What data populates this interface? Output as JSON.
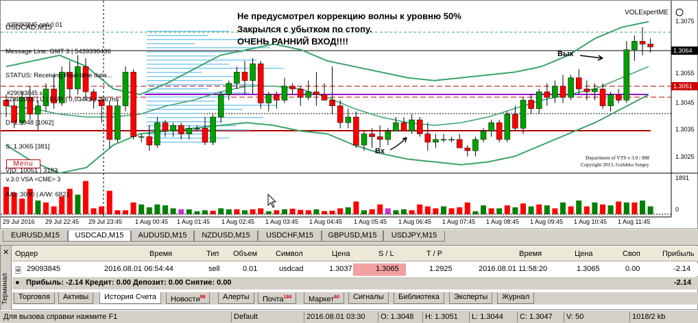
{
  "chart": {
    "title": "USDCAD,M15",
    "info_lines": [
      "Message Line: GMT 3 | 5439398436",
      "STATUS: Receiving Real-time data...",
      "22/8/2016 | U | EUR | 0,034k$ | 296 ms",
      "D: 1.3048 [1062]",
      "S: 1.3065 [381]",
      "V|D: 10051 | 3183",
      "A/D: 3090 | A/W: 6821"
    ],
    "ticket_label": "#29093845 sell 0.01",
    "ticket_label2": "#29093845 s",
    "annotation": "Не предусмотрел коррекцию волны к уровню 50%\nЗакрылся с убытком по стопу.\nОЧЕНЬ РАННИЙ ВХОД!!!!",
    "indicator_title": "VOLExpertME",
    "menu_label": "Menu",
    "copyright": "Department of VTS v 3.0 | 988\nCopyright 2015, Golubko Sergey",
    "exit_label": "Вых",
    "entry_label": "Вх",
    "vsa_label": "v.3.0 VSA <CME> 3",
    "price_ticks": [
      "1.3075",
      "1.3065",
      "1.3055",
      "1.3045",
      "1.3035",
      "1.3025"
    ],
    "price_tag_current": "1.3064",
    "price_tag_sl": "1.3051",
    "vol_ticks": [
      "1891",
      "0"
    ],
    "time_labels": [
      "29 Jul 2016",
      "29 Jul 22:45",
      "29 Jul 23:45",
      "1 Aug 00:45",
      "1 Aug 01:45",
      "1 Aug 02:45",
      "1 Aug 03:45",
      "1 Aug 04:45",
      "1 Aug 05:45",
      "1 Aug 06:45",
      "1 Aug 07:45",
      "1 Aug 08:45",
      "1 Aug 09:45",
      "1 Aug 10:45",
      "1 Aug 11:45"
    ],
    "colors": {
      "bull": "#00a000",
      "bear": "#ff0000",
      "band": "#3aa36a",
      "sl_line": "#b00000",
      "entry_line": "#9900cc"
    }
  },
  "symbol_tabs": [
    "EURUSD,M15",
    "USDCAD,M15",
    "AUDUSD,M15",
    "NZDUSD,M15",
    "USDCHF,M15",
    "GBPUSD,M15",
    "USDJPY,M15"
  ],
  "active_symbol": "USDCAD,M15",
  "terminal": {
    "side_label": "Терминал",
    "headers": [
      "Ордер",
      "Время",
      "Тип",
      "Объем",
      "Символ",
      "Цена",
      "S / L",
      "T / P",
      "Время",
      "Цена",
      "Своп",
      "Прибыль"
    ],
    "row": {
      "order": "29093845",
      "open_time": "2016.08.01 06:54:44",
      "type": "sell",
      "volume": "0.01",
      "symbol": "usdcad",
      "open_price": "1.3037",
      "sl": "1.3065",
      "tp": "1.2925",
      "close_time": "2016.08.01 11:58:20",
      "close_price": "1.3065",
      "swap": "0.00",
      "profit": "-2.14"
    },
    "summary": "Прибыль: -2.14  Кредит: 0.00  Депозит: 0.00  Снятие: 0.00",
    "summary_total": "-2.14",
    "tabs": [
      {
        "label": "Торговля",
        "badge": ""
      },
      {
        "label": "Активы",
        "badge": ""
      },
      {
        "label": "История Счета",
        "badge": ""
      },
      {
        "label": "Новости",
        "badge": "99"
      },
      {
        "label": "Алерты",
        "badge": ""
      },
      {
        "label": "Почта",
        "badge": "184"
      },
      {
        "label": "Маркет",
        "badge": "60"
      },
      {
        "label": "Сигналы",
        "badge": ""
      },
      {
        "label": "Библиотека",
        "badge": ""
      },
      {
        "label": "Эксперты",
        "badge": ""
      },
      {
        "label": "Журнал",
        "badge": ""
      }
    ],
    "active_tab": "История Счета"
  },
  "statusbar": {
    "help": "Для вызова справки нажмите F1",
    "profile": "Default",
    "time": "2016.08.01 03:30",
    "open": "O: 1.3048",
    "high": "H: 1.3051",
    "low": "L: 1.3044",
    "close": "C: 1.3047",
    "volume": "V: 50",
    "traffic": "1018/2 kb"
  },
  "candles": [
    [
      1.3046,
      1.3048,
      1.304,
      1.3044
    ],
    [
      1.3044,
      1.3047,
      1.3036,
      1.3038
    ],
    [
      1.3038,
      1.3049,
      1.3037,
      1.3047
    ],
    [
      1.3047,
      1.3051,
      1.3039,
      1.3041
    ],
    [
      1.3041,
      1.3046,
      1.3035,
      1.3044
    ],
    [
      1.3044,
      1.3052,
      1.3042,
      1.305
    ],
    [
      1.305,
      1.3055,
      1.3043,
      1.3045
    ],
    [
      1.3045,
      1.3058,
      1.3044,
      1.3056
    ],
    [
      1.3056,
      1.306,
      1.3047,
      1.305
    ],
    [
      1.305,
      1.3062,
      1.3048,
      1.3058
    ],
    [
      1.3058,
      1.3061,
      1.3046,
      1.3049
    ],
    [
      1.3049,
      1.305,
      1.3043,
      1.3046
    ],
    [
      1.3046,
      1.3047,
      1.3038,
      1.3044
    ],
    [
      1.3044,
      1.3046,
      1.3029,
      1.3032
    ],
    [
      1.3032,
      1.3046,
      1.3031,
      1.3044
    ],
    [
      1.3044,
      1.3058,
      1.3042,
      1.3056
    ],
    [
      1.3056,
      1.3057,
      1.3032,
      1.3033
    ],
    [
      1.3033,
      1.3034,
      1.3031,
      1.3033
    ],
    [
      1.3033,
      1.3037,
      1.3028,
      1.303
    ],
    [
      1.303,
      1.304,
      1.3029,
      1.3038
    ],
    [
      1.3038,
      1.3039,
      1.3033,
      1.3035
    ],
    [
      1.3035,
      1.3038,
      1.3033,
      1.3037
    ],
    [
      1.3037,
      1.3038,
      1.3032,
      1.3034
    ],
    [
      1.3034,
      1.3037,
      1.3032,
      1.3036
    ],
    [
      1.3036,
      1.3037,
      1.3035,
      1.3036
    ],
    [
      1.3036,
      1.304,
      1.303,
      1.3031
    ],
    [
      1.3031,
      1.3041,
      1.303,
      1.304
    ],
    [
      1.304,
      1.3049,
      1.3038,
      1.3048
    ],
    [
      1.3048,
      1.3053,
      1.3046,
      1.3052
    ],
    [
      1.3052,
      1.3058,
      1.305,
      1.3056
    ],
    [
      1.3056,
      1.306,
      1.3048,
      1.3053
    ],
    [
      1.3053,
      1.3061,
      1.3048,
      1.3059
    ],
    [
      1.3059,
      1.306,
      1.3043,
      1.3045
    ],
    [
      1.3045,
      1.3049,
      1.3042,
      1.3048
    ],
    [
      1.3048,
      1.3049,
      1.3043,
      1.3046
    ],
    [
      1.3046,
      1.3054,
      1.3045,
      1.3051
    ],
    [
      1.3051,
      1.3052,
      1.3048,
      1.305
    ],
    [
      1.305,
      1.3051,
      1.3044,
      1.3047
    ],
    [
      1.3047,
      1.3053,
      1.3046,
      1.3049
    ],
    [
      1.3049,
      1.3056,
      1.3044,
      1.3048
    ],
    [
      1.3048,
      1.3052,
      1.3046,
      1.3046
    ],
    [
      1.3046,
      1.3058,
      1.3041,
      1.3044
    ],
    [
      1.3044,
      1.3046,
      1.3036,
      1.3038
    ],
    [
      1.3038,
      1.3043,
      1.3036,
      1.304
    ],
    [
      1.304,
      1.3042,
      1.3029,
      1.303
    ],
    [
      1.303,
      1.3035,
      1.3028,
      1.3034
    ],
    [
      1.3034,
      1.3036,
      1.3029,
      1.3033
    ],
    [
      1.3033,
      1.3037,
      1.3029,
      1.3032
    ],
    [
      1.3032,
      1.3036,
      1.303,
      1.3035
    ],
    [
      1.3035,
      1.304,
      1.3035,
      1.3038
    ],
    [
      1.3038,
      1.304,
      1.3035,
      1.3035
    ],
    [
      1.3035,
      1.3041,
      1.3034,
      1.3039
    ],
    [
      1.3039,
      1.304,
      1.3033,
      1.3034
    ],
    [
      1.3034,
      1.3038,
      1.3028,
      1.3031
    ],
    [
      1.3031,
      1.3034,
      1.3029,
      1.3032
    ],
    [
      1.3032,
      1.3034,
      1.3031,
      1.3032
    ],
    [
      1.3032,
      1.3033,
      1.3031,
      1.3032
    ],
    [
      1.3032,
      1.3034,
      1.3029,
      1.3029
    ],
    [
      1.3029,
      1.303,
      1.3026,
      1.3028
    ],
    [
      1.3028,
      1.3033,
      1.3026,
      1.3032
    ],
    [
      1.3032,
      1.3036,
      1.3031,
      1.3035
    ],
    [
      1.3035,
      1.3039,
      1.3033,
      1.3038
    ],
    [
      1.3038,
      1.3039,
      1.3031,
      1.3032
    ],
    [
      1.3032,
      1.3042,
      1.3031,
      1.3041
    ],
    [
      1.3041,
      1.3044,
      1.3035,
      1.3036
    ],
    [
      1.3036,
      1.3047,
      1.3034,
      1.3046
    ],
    [
      1.3046,
      1.3048,
      1.3041,
      1.3043
    ],
    [
      1.3043,
      1.305,
      1.3041,
      1.3049
    ],
    [
      1.3049,
      1.3052,
      1.3044,
      1.3047
    ],
    [
      1.3047,
      1.3053,
      1.3045,
      1.3051
    ],
    [
      1.3051,
      1.3055,
      1.3045,
      1.3047
    ],
    [
      1.3047,
      1.3055,
      1.3046,
      1.3054
    ],
    [
      1.3054,
      1.3057,
      1.3048,
      1.305
    ],
    [
      1.305,
      1.3053,
      1.3046,
      1.3049
    ],
    [
      1.3049,
      1.3052,
      1.3046,
      1.305
    ],
    [
      1.305,
      1.3052,
      1.3043,
      1.3044
    ],
    [
      1.3044,
      1.3049,
      1.3042,
      1.3048
    ],
    [
      1.3048,
      1.305,
      1.3045,
      1.3046
    ],
    [
      1.3046,
      1.3067,
      1.3045,
      1.3064
    ],
    [
      1.3064,
      1.3069,
      1.306,
      1.3067
    ],
    [
      1.3067,
      1.3072,
      1.3062,
      1.3066
    ],
    [
      1.3066,
      1.3068,
      1.3063,
      1.3065
    ]
  ],
  "volumes": [
    1400,
    1100,
    800,
    1300,
    700,
    600,
    400,
    900,
    1300,
    1000,
    1700,
    300,
    400,
    1200,
    200,
    200,
    600,
    500,
    350,
    500,
    450,
    300,
    250,
    250,
    150,
    200,
    180,
    300,
    250,
    250,
    200,
    250,
    300,
    150,
    200,
    250,
    280,
    220,
    200,
    250,
    160,
    180,
    300,
    350,
    650,
    200,
    250,
    500,
    300,
    200,
    250,
    200,
    500,
    400,
    300,
    400,
    300,
    350,
    600,
    150,
    450,
    300,
    300,
    450,
    350,
    550,
    400,
    500,
    450,
    300,
    600,
    400,
    700,
    400,
    600,
    500,
    450,
    650,
    600,
    600,
    700,
    400
  ],
  "vol_colors": [
    "r",
    "r",
    "r",
    "r",
    "g",
    "r",
    "r",
    "r",
    "r",
    "g",
    "r",
    "r",
    "r",
    "r",
    "r",
    "r",
    "r",
    "g",
    "g",
    "g",
    "g",
    "g",
    "m",
    "g",
    "g",
    "g",
    "r",
    "g",
    "g",
    "r",
    "g",
    "r",
    "r",
    "g",
    "r",
    "g",
    "r",
    "r",
    "r",
    "g",
    "r",
    "r",
    "r",
    "g",
    "r",
    "g",
    "r",
    "r",
    "m",
    "g",
    "g",
    "r",
    "r",
    "r",
    "r",
    "g",
    "r",
    "r",
    "r",
    "g",
    "g",
    "r",
    "g",
    "r",
    "g",
    "r",
    "g",
    "r",
    "g",
    "r",
    "g",
    "r",
    "g",
    "r",
    "g",
    "r",
    "g",
    "r",
    "g",
    "r",
    "g",
    "g"
  ]
}
